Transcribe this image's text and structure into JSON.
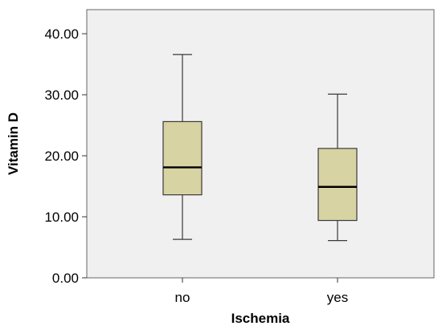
{
  "chart_data": {
    "type": "box",
    "title": "",
    "xlabel": "Ischemia",
    "ylabel": "Vitamin D",
    "categories": [
      "no",
      "yes"
    ],
    "ylim": [
      0,
      40
    ],
    "yticks": [
      0,
      10,
      20,
      30,
      40
    ],
    "ytick_labels": [
      "0.00",
      "10.00",
      "20.00",
      "30.00",
      "40.00"
    ],
    "boxes": [
      {
        "category": "no",
        "min": 6.3,
        "q1": 13.6,
        "median": 18.1,
        "q3": 25.6,
        "max": 36.6
      },
      {
        "category": "yes",
        "min": 6.1,
        "q1": 9.4,
        "median": 14.9,
        "q3": 21.2,
        "max": 30.1
      }
    ],
    "grid": false,
    "legend": "none",
    "colors": {
      "plot_background": "#f0f0f0",
      "box_fill": "#d8d3a3",
      "box_stroke": "#3a3a3a",
      "median_stroke": "#000000",
      "frame_stroke": "#666666"
    }
  }
}
